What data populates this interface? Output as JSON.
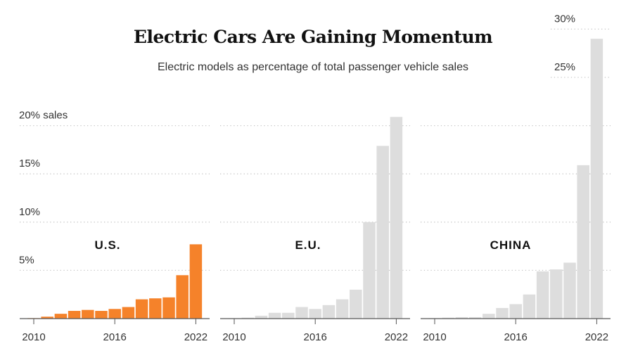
{
  "title": "Electric Cars Are Gaining Momentum",
  "subtitle": "Electric models as percentage of total passenger vehicle sales",
  "colors": {
    "us": "#f5822a",
    "other": "#dddddd",
    "grid": "#c8c8c8",
    "axis": "#555555"
  },
  "chart_data": {
    "type": "bar",
    "title": "Electric Cars Are Gaining Momentum",
    "subtitle": "Electric models as percentage of total passenger vehicle sales",
    "ylabel": "% sales",
    "ylim": [
      0,
      30
    ],
    "y_ticks": [
      {
        "value": 5,
        "label": "5%"
      },
      {
        "value": 10,
        "label": "10%"
      },
      {
        "value": 15,
        "label": "15%"
      },
      {
        "value": 20,
        "label": "20% sales"
      },
      {
        "value": 25,
        "label": "25%"
      },
      {
        "value": 30,
        "label": "30%"
      }
    ],
    "x": [
      2010,
      2011,
      2012,
      2013,
      2014,
      2015,
      2016,
      2017,
      2018,
      2019,
      2020,
      2021,
      2022
    ],
    "x_tick_labels": [
      "2010",
      "2016",
      "2022"
    ],
    "grid": true,
    "series": [
      {
        "name": "U.S.",
        "values": [
          0.05,
          0.2,
          0.5,
          0.8,
          0.9,
          0.8,
          1.0,
          1.2,
          2.0,
          2.1,
          2.2,
          4.5,
          7.7
        ]
      },
      {
        "name": "E.U.",
        "values": [
          0.02,
          0.1,
          0.3,
          0.6,
          0.6,
          1.2,
          1.0,
          1.4,
          2.0,
          3.0,
          10.0,
          17.9,
          20.9
        ]
      },
      {
        "name": "CHINA",
        "values": [
          0.05,
          0.1,
          0.15,
          0.15,
          0.5,
          1.1,
          1.5,
          2.5,
          4.9,
          5.1,
          5.8,
          15.9,
          29.0
        ]
      }
    ]
  }
}
